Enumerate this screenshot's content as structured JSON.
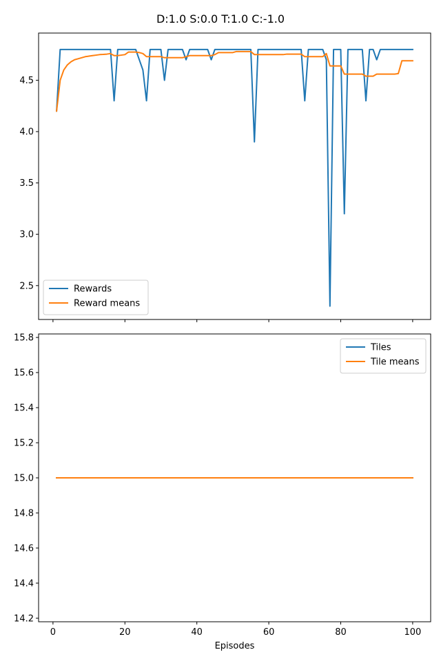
{
  "figure_title": "D:1.0 S:0.0 T:1.0 C:-1.0",
  "colors": {
    "blue": "#1f77b4",
    "orange": "#ff7f0e"
  },
  "chart_data": [
    {
      "type": "line",
      "title": "",
      "xlabel": "",
      "ylabel": "",
      "xlim": [
        -4,
        105
      ],
      "ylim": [
        2.17,
        4.96
      ],
      "x_ticks": [
        0,
        20,
        40,
        60,
        80,
        100
      ],
      "show_x_tick_labels": false,
      "y_ticks": [
        2.5,
        3.0,
        3.5,
        4.0,
        4.5
      ],
      "y_tick_labels": [
        "2.5",
        "3.0",
        "3.5",
        "4.0",
        "4.5"
      ],
      "legend_position": "lower-left",
      "grid": false,
      "series": [
        {
          "name": "Rewards",
          "color": "#1f77b4",
          "x": [
            1,
            2,
            3,
            4,
            5,
            6,
            7,
            8,
            9,
            10,
            11,
            12,
            13,
            14,
            15,
            16,
            17,
            18,
            19,
            20,
            21,
            22,
            23,
            24,
            25,
            26,
            27,
            28,
            29,
            30,
            31,
            32,
            33,
            34,
            35,
            36,
            37,
            38,
            39,
            40,
            41,
            42,
            43,
            44,
            45,
            46,
            47,
            48,
            49,
            50,
            51,
            52,
            53,
            54,
            55,
            56,
            57,
            58,
            59,
            60,
            61,
            62,
            63,
            64,
            65,
            66,
            67,
            68,
            69,
            70,
            71,
            72,
            73,
            74,
            75,
            76,
            77,
            78,
            79,
            80,
            81,
            82,
            83,
            84,
            85,
            86,
            87,
            88,
            89,
            90,
            91,
            92,
            93,
            94,
            95,
            96,
            97,
            98,
            99,
            100
          ],
          "y": [
            4.2,
            4.8,
            4.8,
            4.8,
            4.8,
            4.8,
            4.8,
            4.8,
            4.8,
            4.8,
            4.8,
            4.8,
            4.8,
            4.8,
            4.8,
            4.8,
            4.3,
            4.8,
            4.8,
            4.8,
            4.8,
            4.8,
            4.8,
            4.7,
            4.6,
            4.3,
            4.8,
            4.8,
            4.8,
            4.8,
            4.5,
            4.8,
            4.8,
            4.8,
            4.8,
            4.8,
            4.7,
            4.8,
            4.8,
            4.8,
            4.8,
            4.8,
            4.8,
            4.7,
            4.8,
            4.8,
            4.8,
            4.8,
            4.8,
            4.8,
            4.8,
            4.8,
            4.8,
            4.8,
            4.8,
            3.9,
            4.8,
            4.8,
            4.8,
            4.8,
            4.8,
            4.8,
            4.8,
            4.8,
            4.8,
            4.8,
            4.8,
            4.8,
            4.8,
            4.3,
            4.8,
            4.8,
            4.8,
            4.8,
            4.8,
            4.7,
            2.3,
            4.8,
            4.8,
            4.8,
            3.2,
            4.8,
            4.8,
            4.8,
            4.8,
            4.8,
            4.3,
            4.8,
            4.8,
            4.7,
            4.8,
            4.8,
            4.8,
            4.8,
            4.8,
            4.8,
            4.8,
            4.8,
            4.8,
            4.8
          ]
        },
        {
          "name": "Reward means",
          "color": "#ff7f0e",
          "x": [
            1,
            2,
            3,
            4,
            5,
            6,
            7,
            8,
            9,
            10,
            11,
            12,
            13,
            14,
            15,
            16,
            17,
            18,
            19,
            20,
            21,
            22,
            23,
            24,
            25,
            26,
            27,
            28,
            29,
            30,
            31,
            32,
            33,
            34,
            35,
            36,
            37,
            38,
            39,
            40,
            41,
            42,
            43,
            44,
            45,
            46,
            47,
            48,
            49,
            50,
            51,
            52,
            53,
            54,
            55,
            56,
            57,
            58,
            59,
            60,
            61,
            62,
            63,
            64,
            65,
            66,
            67,
            68,
            69,
            70,
            71,
            72,
            73,
            74,
            75,
            76,
            77,
            78,
            79,
            80,
            81,
            82,
            83,
            84,
            85,
            86,
            87,
            88,
            89,
            90,
            91,
            92,
            93,
            94,
            95,
            96,
            97,
            98,
            99,
            100
          ],
          "y": [
            4.2,
            4.5,
            4.6,
            4.65,
            4.68,
            4.7,
            4.71,
            4.72,
            4.73,
            4.735,
            4.74,
            4.745,
            4.75,
            4.752,
            4.755,
            4.76,
            4.74,
            4.74,
            4.745,
            4.75,
            4.775,
            4.775,
            4.775,
            4.77,
            4.76,
            4.73,
            4.73,
            4.73,
            4.73,
            4.73,
            4.72,
            4.72,
            4.72,
            4.72,
            4.72,
            4.72,
            4.73,
            4.74,
            4.74,
            4.74,
            4.74,
            4.74,
            4.74,
            4.74,
            4.75,
            4.77,
            4.77,
            4.77,
            4.77,
            4.77,
            4.78,
            4.78,
            4.78,
            4.78,
            4.78,
            4.75,
            4.75,
            4.75,
            4.75,
            4.75,
            4.75,
            4.75,
            4.75,
            4.75,
            4.755,
            4.755,
            4.755,
            4.755,
            4.755,
            4.73,
            4.73,
            4.73,
            4.73,
            4.73,
            4.73,
            4.76,
            4.64,
            4.64,
            4.64,
            4.64,
            4.56,
            4.56,
            4.56,
            4.56,
            4.56,
            4.56,
            4.54,
            4.54,
            4.54,
            4.56,
            4.56,
            4.56,
            4.56,
            4.56,
            4.56,
            4.565,
            4.69,
            4.69,
            4.69,
            4.69
          ]
        }
      ]
    },
    {
      "type": "line",
      "title": "",
      "xlabel": "Episodes",
      "ylabel": "",
      "xlim": [
        -4,
        105
      ],
      "ylim": [
        14.18,
        15.82
      ],
      "x_ticks": [
        0,
        20,
        40,
        60,
        80,
        100
      ],
      "x_tick_labels": [
        "0",
        "20",
        "40",
        "60",
        "80",
        "100"
      ],
      "show_x_tick_labels": true,
      "y_ticks": [
        14.2,
        14.4,
        14.6,
        14.8,
        15.0,
        15.2,
        15.4,
        15.6,
        15.8
      ],
      "y_tick_labels": [
        "14.2",
        "14.4",
        "14.6",
        "14.8",
        "15.0",
        "15.2",
        "15.4",
        "15.6",
        "15.8"
      ],
      "legend_position": "upper-right",
      "grid": false,
      "series": [
        {
          "name": "Tiles",
          "color": "#1f77b4",
          "x": [
            1,
            100
          ],
          "y": [
            15.0,
            15.0
          ]
        },
        {
          "name": "Tile means",
          "color": "#ff7f0e",
          "x": [
            1,
            100
          ],
          "y": [
            15.0,
            15.0
          ]
        }
      ]
    }
  ]
}
